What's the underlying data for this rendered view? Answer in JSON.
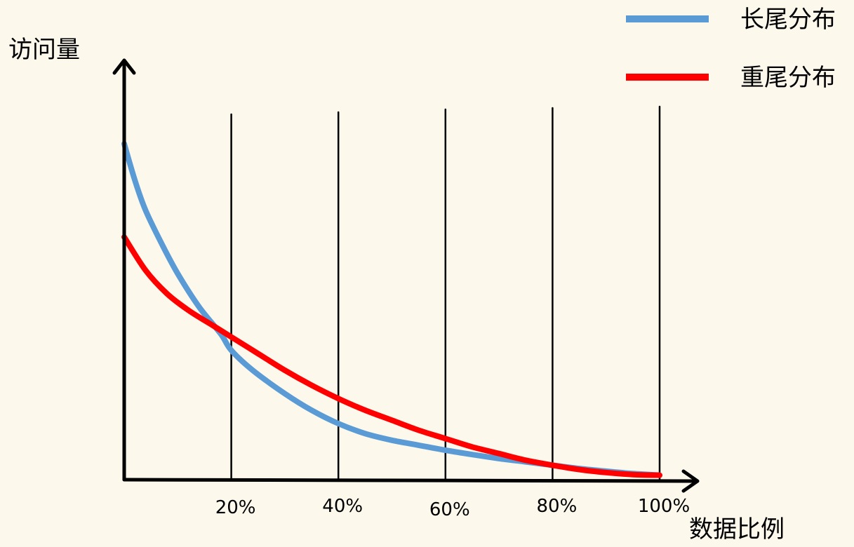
{
  "chart_data": {
    "type": "line",
    "title": "",
    "xlabel": "数据比例",
    "ylabel": "访问量",
    "x_tick_labels": [
      "20%",
      "40%",
      "60%",
      "80%",
      "100%"
    ],
    "x_ticks": [
      20,
      40,
      60,
      80,
      100
    ],
    "xlim": [
      0,
      100
    ],
    "ylim": [
      0,
      100
    ],
    "y_ticks_shown": false,
    "grid": "vertical",
    "legend_position": "top-right",
    "series": [
      {
        "name": "长尾分布",
        "color": "#5b9bd5",
        "x": [
          0,
          2,
          4,
          7,
          10,
          14,
          18,
          20,
          24,
          30,
          35,
          40,
          45,
          50,
          55,
          60,
          65,
          70,
          75,
          80,
          85,
          90,
          95,
          100
        ],
        "y": [
          100,
          89,
          80,
          70,
          61,
          51,
          43,
          38,
          32,
          25,
          20,
          16,
          13,
          11,
          9.5,
          8,
          6.7,
          5.5,
          4.5,
          3.5,
          2.5,
          1.7,
          1,
          0.5
        ]
      },
      {
        "name": "重尾分布",
        "color": "#ff0000",
        "x": [
          0,
          4,
          8,
          12,
          16,
          20,
          25,
          30,
          35,
          40,
          45,
          50,
          55,
          60,
          65,
          70,
          75,
          80,
          85,
          90,
          95,
          100
        ],
        "y": [
          72,
          62,
          55,
          50,
          46,
          42,
          37,
          32,
          27.5,
          23.5,
          20,
          17,
          14,
          11.5,
          9,
          7,
          5,
          3.5,
          2.2,
          1.3,
          0.7,
          0.5
        ]
      }
    ]
  }
}
